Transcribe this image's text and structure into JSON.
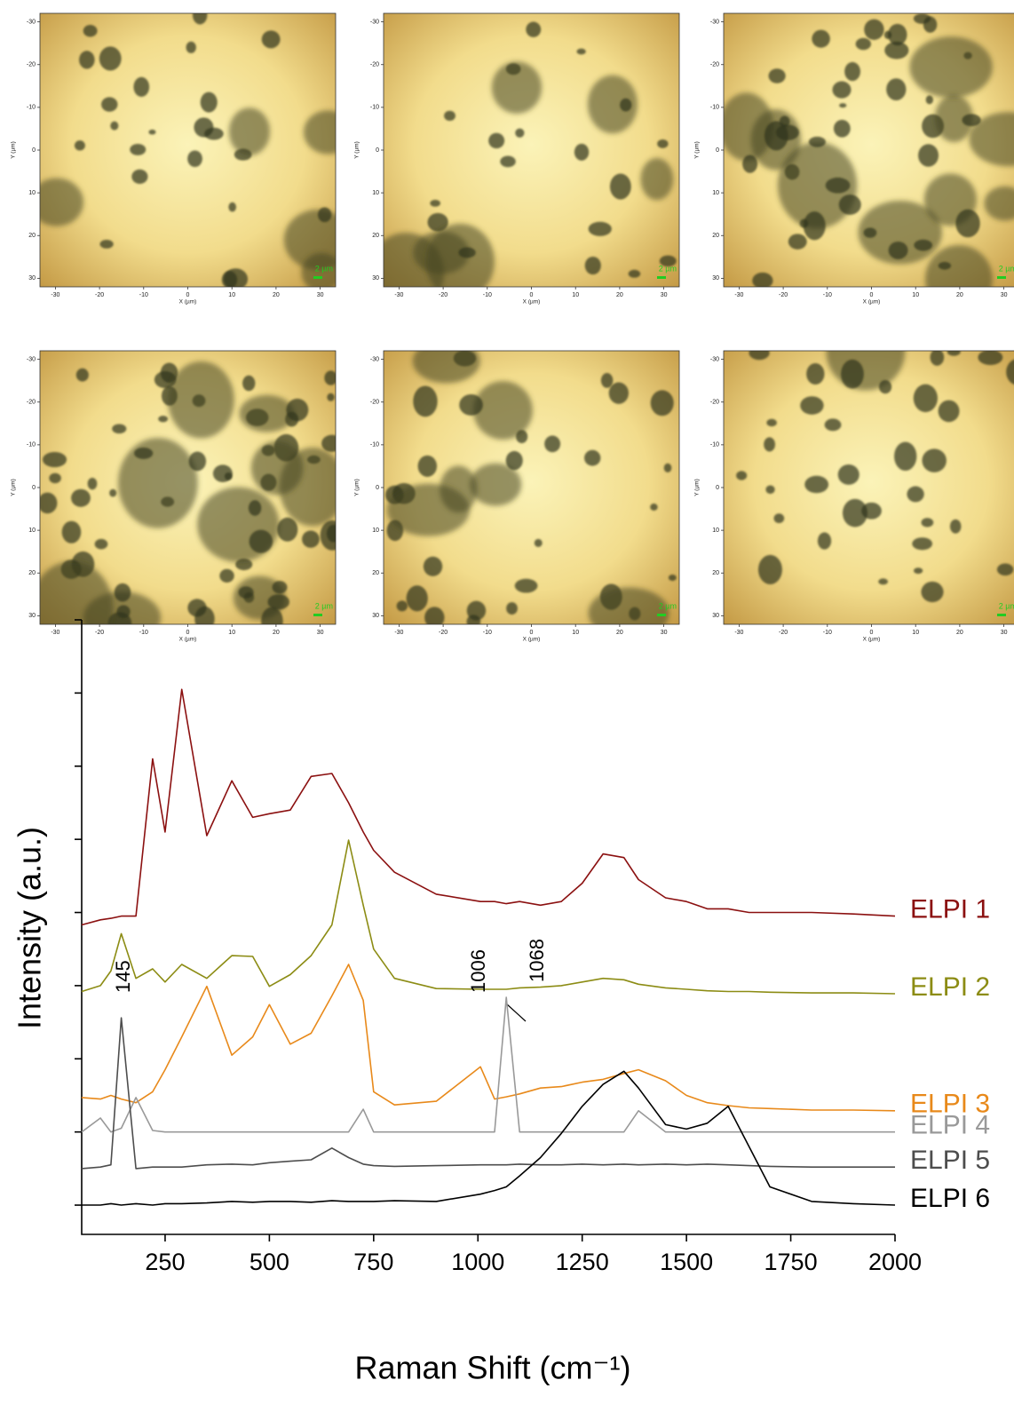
{
  "chart_data": [
    {
      "type": "image",
      "xlabel": "X (µm)",
      "ylabel": "Y (µm)",
      "xlim": [
        -33.5,
        33.5
      ],
      "ylim": [
        32,
        -32
      ],
      "xticks": [
        -30,
        -20,
        -10,
        0,
        10,
        20,
        30
      ],
      "yticks": [
        -30,
        -20,
        -10,
        0,
        10,
        20,
        30
      ],
      "scale_bar": "2 µm"
    },
    {
      "type": "image",
      "xlabel": "X (µm)",
      "ylabel": "Y (µm)",
      "xlim": [
        -33.5,
        33.5
      ],
      "ylim": [
        32,
        -32
      ],
      "xticks": [
        -30,
        -20,
        -10,
        0,
        10,
        20,
        30
      ],
      "yticks": [
        -30,
        -20,
        -10,
        0,
        10,
        20,
        30
      ],
      "scale_bar": "2 µm"
    },
    {
      "type": "image",
      "xlabel": "X (µm)",
      "ylabel": "Y (µm)",
      "xlim": [
        -33.5,
        33.5
      ],
      "ylim": [
        32,
        -32
      ],
      "xticks": [
        -30,
        -20,
        -10,
        0,
        10,
        20,
        30
      ],
      "yticks": [
        -30,
        -20,
        -10,
        0,
        10,
        20,
        30
      ],
      "scale_bar": "2 µm"
    },
    {
      "type": "image",
      "xlabel": "X (µm)",
      "ylabel": "Y (µm)",
      "xlim": [
        -33.5,
        33.5
      ],
      "ylim": [
        32,
        -32
      ],
      "xticks": [
        -30,
        -20,
        -10,
        0,
        10,
        20,
        30
      ],
      "yticks": [
        -30,
        -20,
        -10,
        0,
        10,
        20,
        30
      ],
      "scale_bar": "2 µm"
    },
    {
      "type": "image",
      "xlabel": "X (µm)",
      "ylabel": "Y (µm)",
      "xlim": [
        -33.5,
        33.5
      ],
      "ylim": [
        32,
        -32
      ],
      "xticks": [
        -30,
        -20,
        -10,
        0,
        10,
        20,
        30
      ],
      "yticks": [
        -30,
        -20,
        -10,
        0,
        10,
        20,
        30
      ],
      "scale_bar": "2 µm"
    },
    {
      "type": "image",
      "xlabel": "X (µm)",
      "ylabel": "Y (µm)",
      "xlim": [
        -33.5,
        33.5
      ],
      "ylim": [
        32,
        -32
      ],
      "xticks": [
        -30,
        -20,
        -10,
        0,
        10,
        20,
        30
      ],
      "yticks": [
        -30,
        -20,
        -10,
        0,
        10,
        20,
        30
      ],
      "scale_bar": "2 µm"
    },
    {
      "type": "line",
      "xlabel": "Raman Shift (cm⁻¹)",
      "ylabel": "Intensity (a.u.)",
      "xlim": [
        50,
        2000
      ],
      "ylim": [
        -0.4,
        8
      ],
      "xticks": [
        250,
        500,
        750,
        1000,
        1250,
        1500,
        1750,
        2000
      ],
      "yticks": [
        0,
        1,
        2,
        3,
        4,
        5,
        6,
        7,
        8
      ],
      "x": [
        50,
        95,
        120,
        145,
        180,
        220,
        250,
        290,
        350,
        410,
        460,
        500,
        550,
        600,
        650,
        690,
        725,
        750,
        800,
        900,
        1006,
        1040,
        1068,
        1100,
        1150,
        1200,
        1250,
        1300,
        1350,
        1385,
        1450,
        1500,
        1550,
        1600,
        1650,
        1700,
        1800,
        1900,
        2000
      ],
      "series": [
        {
          "name": "ELPI 1",
          "color": "#8b1010",
          "values": [
            3.83,
            3.9,
            3.92,
            3.95,
            3.95,
            6.1,
            5.1,
            7.05,
            5.05,
            5.8,
            5.3,
            5.35,
            5.4,
            5.86,
            5.9,
            5.5,
            5.1,
            4.85,
            4.55,
            4.25,
            4.15,
            4.15,
            4.12,
            4.15,
            4.1,
            4.15,
            4.4,
            4.8,
            4.75,
            4.45,
            4.2,
            4.15,
            4.05,
            4.05,
            4.0,
            4.0,
            4.0,
            3.98,
            3.95
          ]
        },
        {
          "name": "ELPI 2",
          "color": "#8c8c14",
          "values": [
            2.92,
            3.0,
            3.2,
            3.71,
            3.1,
            3.23,
            3.05,
            3.29,
            3.1,
            3.41,
            3.4,
            2.99,
            3.15,
            3.41,
            3.83,
            4.99,
            4.1,
            3.5,
            3.1,
            2.96,
            2.95,
            2.95,
            2.95,
            2.97,
            2.98,
            3.0,
            3.05,
            3.1,
            3.08,
            3.02,
            2.97,
            2.95,
            2.93,
            2.92,
            2.92,
            2.91,
            2.9,
            2.9,
            2.89
          ]
        },
        {
          "name": "ELPI 3",
          "color": "#e8891a",
          "values": [
            1.47,
            1.45,
            1.5,
            1.45,
            1.4,
            1.55,
            1.85,
            2.3,
            2.99,
            2.05,
            2.3,
            2.74,
            2.2,
            2.35,
            2.86,
            3.29,
            2.8,
            1.55,
            1.37,
            1.42,
            1.89,
            1.45,
            1.48,
            1.52,
            1.6,
            1.62,
            1.68,
            1.72,
            1.8,
            1.85,
            1.7,
            1.5,
            1.4,
            1.36,
            1.33,
            1.32,
            1.3,
            1.3,
            1.29
          ]
        },
        {
          "name": "ELPI 4",
          "color": "#999999",
          "values": [
            1.0,
            1.19,
            1.0,
            1.05,
            1.47,
            1.02,
            1.0,
            1.0,
            1.0,
            1.0,
            1.0,
            1.0,
            1.0,
            1.0,
            1.0,
            1.0,
            1.31,
            1.0,
            1.0,
            1.0,
            1.0,
            1.0,
            2.84,
            1.0,
            1.0,
            1.0,
            1.0,
            1.0,
            1.0,
            1.29,
            1.0,
            1.0,
            1.0,
            1.0,
            1.0,
            1.0,
            1.0,
            1.0,
            1.0
          ]
        },
        {
          "name": "ELPI 5",
          "color": "#4d4d4d",
          "values": [
            0.5,
            0.52,
            0.55,
            2.56,
            0.5,
            0.52,
            0.52,
            0.52,
            0.55,
            0.56,
            0.55,
            0.58,
            0.6,
            0.62,
            0.78,
            0.65,
            0.56,
            0.54,
            0.53,
            0.54,
            0.55,
            0.55,
            0.55,
            0.56,
            0.55,
            0.55,
            0.56,
            0.55,
            0.56,
            0.55,
            0.56,
            0.55,
            0.56,
            0.55,
            0.54,
            0.53,
            0.52,
            0.52,
            0.52
          ]
        },
        {
          "name": "ELPI 6",
          "color": "#000000",
          "values": [
            0.0,
            0.0,
            0.02,
            0.0,
            0.02,
            0.0,
            0.02,
            0.02,
            0.03,
            0.05,
            0.04,
            0.05,
            0.05,
            0.04,
            0.06,
            0.05,
            0.05,
            0.05,
            0.06,
            0.05,
            0.15,
            0.2,
            0.25,
            0.4,
            0.65,
            0.98,
            1.35,
            1.65,
            1.83,
            1.6,
            1.1,
            1.04,
            1.12,
            1.35,
            0.8,
            0.25,
            0.05,
            0.02,
            0.0
          ]
        }
      ],
      "annotations": [
        "145",
        "1006",
        "1068"
      ]
    }
  ]
}
